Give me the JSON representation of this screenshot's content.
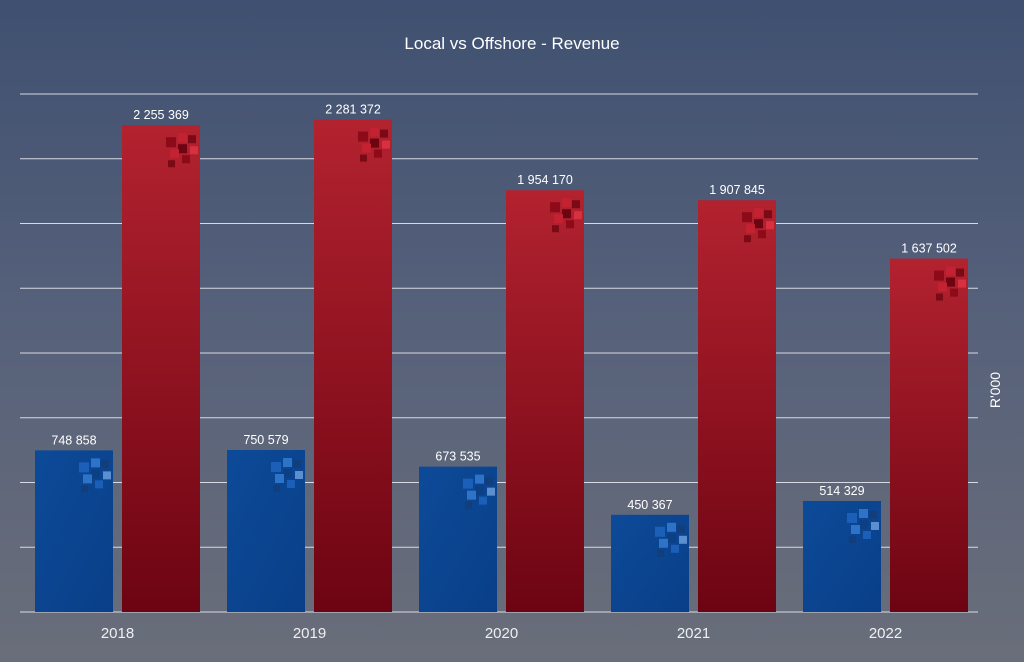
{
  "chart_data": {
    "type": "bar",
    "title": "Local vs Offshore - Revenue",
    "ylabel": "R'000",
    "xlabel": "",
    "categories": [
      "2018",
      "2019",
      "2020",
      "2021",
      "2022"
    ],
    "series": [
      {
        "values": [
          748858,
          750579,
          673535,
          450367,
          514329
        ],
        "color": "#0b4a9c"
      },
      {
        "values": [
          2255369,
          2281372,
          1954170,
          1907845,
          1637502
        ],
        "color": "#9c1020"
      }
    ],
    "value_labels": [
      [
        "748 858",
        "750 579",
        "673 535",
        "450 367",
        "514 329"
      ],
      [
        "2 255 369",
        "2 281 372",
        "1 954 170",
        "1 907 845",
        "1 637 502"
      ]
    ],
    "ylim": [
      0,
      2400000
    ],
    "grid": true,
    "legend": "none"
  }
}
